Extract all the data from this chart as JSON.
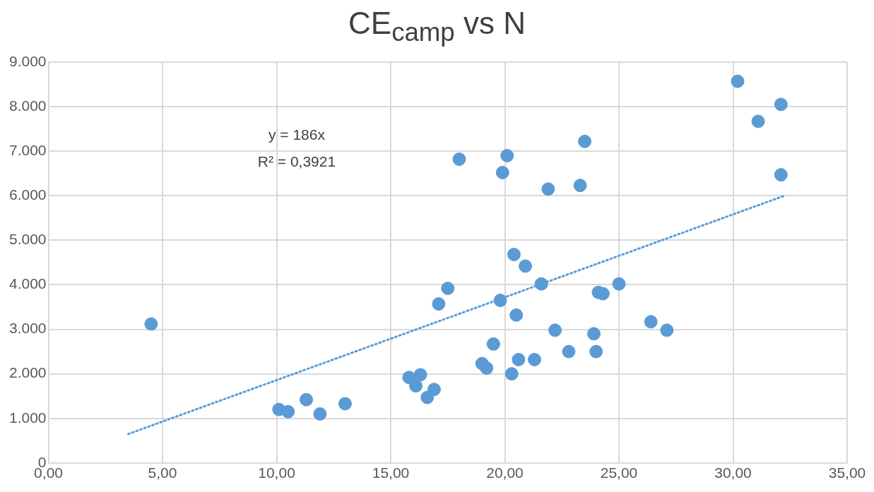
{
  "chart_data": {
    "type": "scatter",
    "title": "CE$_{camp}$ vs N",
    "series": [
      {
        "color": "#5b9bd5",
        "marker": "circle",
        "x": [
          4.5,
          10.1,
          10.5,
          11.3,
          11.9,
          13.0,
          15.8,
          16.1,
          16.3,
          16.6,
          16.9,
          17.1,
          17.5,
          18.0,
          19.0,
          19.2,
          19.5,
          19.8,
          19.9,
          20.1,
          20.3,
          20.4,
          20.5,
          20.6,
          20.9,
          21.3,
          21.6,
          21.9,
          22.2,
          22.8,
          23.3,
          23.5,
          23.9,
          24.0,
          24.1,
          24.3,
          25.0,
          26.4,
          27.1,
          30.2,
          31.1,
          32.1,
          32.1
        ],
        "values": [
          3120,
          1200,
          1150,
          1420,
          1100,
          1330,
          1920,
          1730,
          1980,
          1470,
          1650,
          3570,
          3920,
          6820,
          2230,
          2130,
          2670,
          3650,
          6520,
          6900,
          2000,
          4680,
          3320,
          2320,
          4420,
          2320,
          4020,
          6150,
          2980,
          2500,
          6230,
          7220,
          2900,
          2500,
          3830,
          3800,
          4020,
          3170,
          2980,
          8570,
          7670,
          8050,
          6470
        ]
      },
      {
        "type": "line",
        "color": "#5b9bd5",
        "line_style": "dotted",
        "marker": "none",
        "x": [
          3.5,
          32.2
        ],
        "values": [
          650,
          5990
        ]
      }
    ],
    "annotations": [
      "y = 186x",
      "R² = 0,3921"
    ],
    "xlim": [
      0,
      35
    ],
    "xticks": [
      {
        "value": 0,
        "label": "0,00"
      },
      {
        "value": 5,
        "label": "5,00"
      },
      {
        "value": 10,
        "label": "10,00"
      },
      {
        "value": 15,
        "label": "15,00"
      },
      {
        "value": 20,
        "label": "20,00"
      },
      {
        "value": 25,
        "label": "25,00"
      },
      {
        "value": 30,
        "label": "30,00"
      },
      {
        "value": 35,
        "label": "35,00"
      }
    ],
    "ylim": [
      0,
      9000
    ],
    "yticks": [
      0,
      {
        "value": 1000,
        "label": "1.000"
      },
      {
        "value": 2000,
        "label": "2.000"
      },
      {
        "value": 3000,
        "label": "3.000"
      },
      {
        "value": 4000,
        "label": "4.000"
      },
      {
        "value": 5000,
        "label": "5.000"
      },
      {
        "value": 6000,
        "label": "6.000"
      },
      {
        "value": 7000,
        "label": "7.000"
      },
      {
        "value": 8000,
        "label": "8.000"
      },
      {
        "value": 9000,
        "label": "9.000"
      }
    ],
    "grid": true,
    "legend": false
  }
}
